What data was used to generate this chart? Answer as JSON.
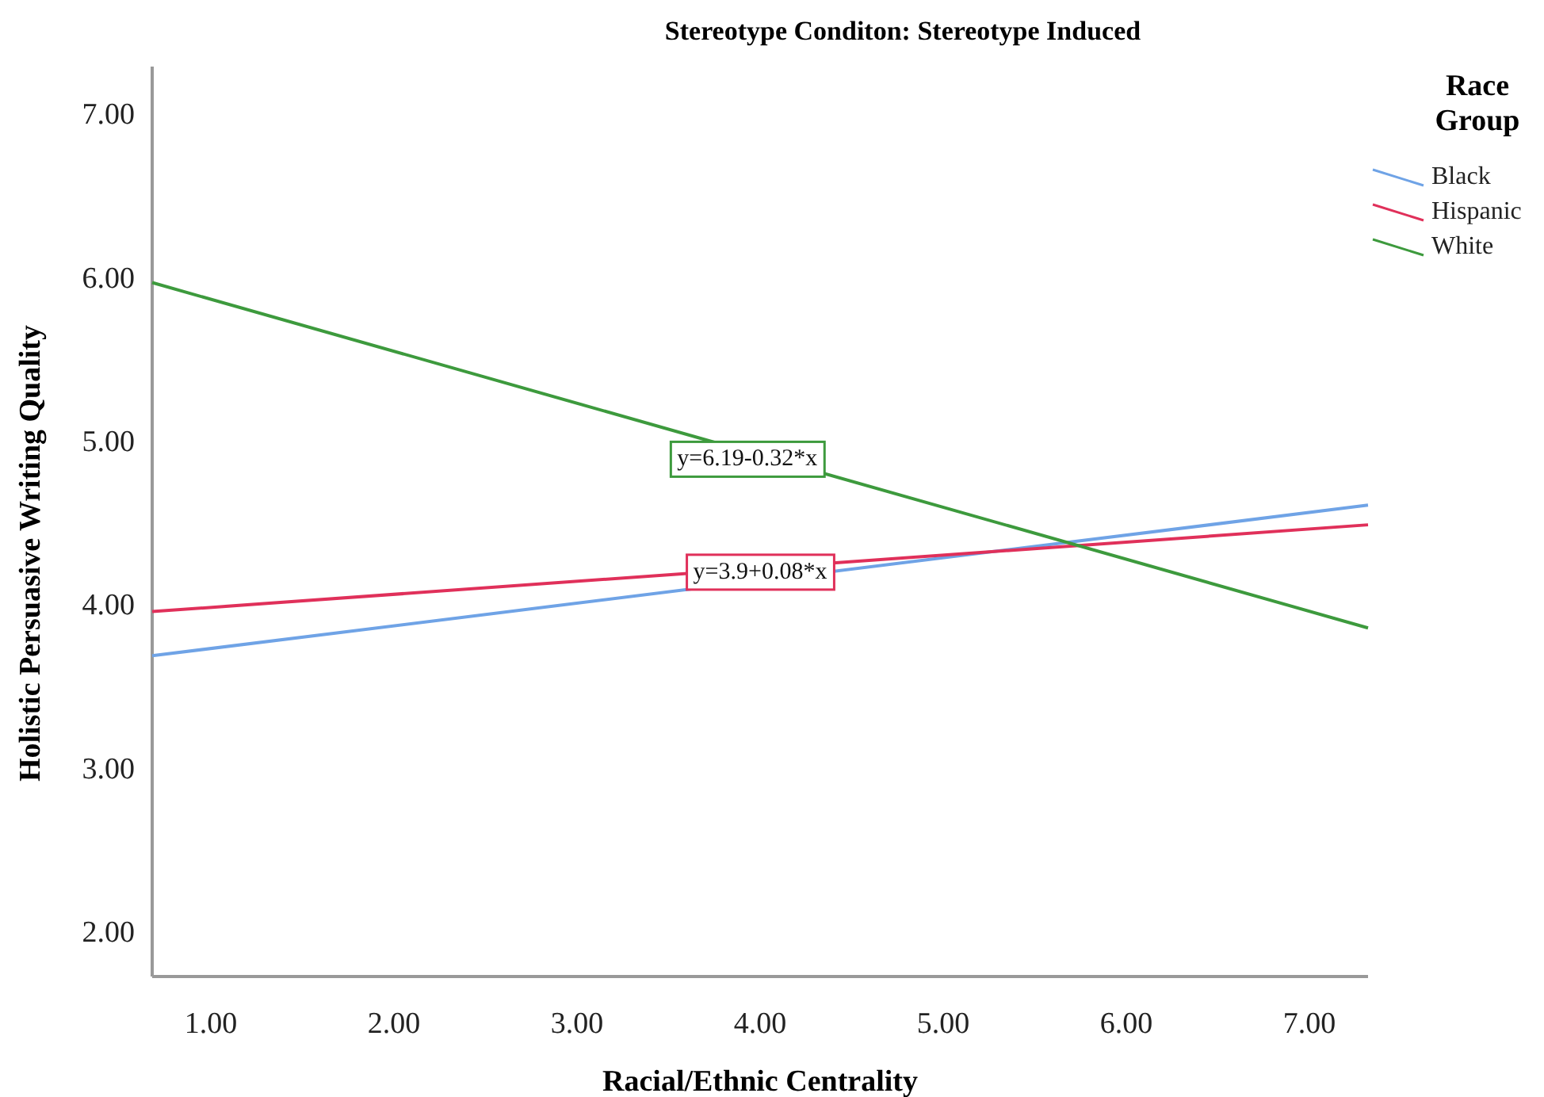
{
  "chart_data": {
    "type": "line",
    "title": "Stereotype Conditon: Stereotype Induced",
    "xlabel": "Racial/Ethnic Centrality",
    "ylabel": "Holistic Persuasive Writing Quality",
    "legend_title": "Race Group",
    "legend": "top right",
    "xlim": [
      0.68,
      7.32
    ],
    "ylim": [
      1.73,
      7.29
    ],
    "xticks": [
      {
        "value": 1,
        "label": "1.00"
      },
      {
        "value": 2,
        "label": "2.00"
      },
      {
        "value": 3,
        "label": "3.00"
      },
      {
        "value": 4,
        "label": "4.00"
      },
      {
        "value": 5,
        "label": "5.00"
      },
      {
        "value": 6,
        "label": "6.00"
      },
      {
        "value": 7,
        "label": "7.00"
      }
    ],
    "yticks": [
      {
        "value": 2,
        "label": "2.00"
      },
      {
        "value": 3,
        "label": "3.00"
      },
      {
        "value": 4,
        "label": "4.00"
      },
      {
        "value": 5,
        "label": "5.00"
      },
      {
        "value": 6,
        "label": "6.00"
      },
      {
        "value": 7,
        "label": "7.00"
      }
    ],
    "grid": false,
    "x": [
      0.68,
      7.32
    ],
    "series": [
      {
        "name": "Black",
        "color": "#6fa3e6",
        "values": [
          3.69,
          4.61
        ]
      },
      {
        "name": "Hispanic",
        "color": "#e0305a",
        "values": [
          3.96,
          4.49
        ]
      },
      {
        "name": "White",
        "color": "#3d9a3d",
        "values": [
          5.97,
          3.86
        ]
      }
    ],
    "annotations": [
      {
        "text": "y=6.19-0.32*x",
        "x": 3.93,
        "y": 4.91
      },
      {
        "text": "y=3.9+0.08*x",
        "x": 4.0,
        "y": 4.22
      }
    ]
  }
}
